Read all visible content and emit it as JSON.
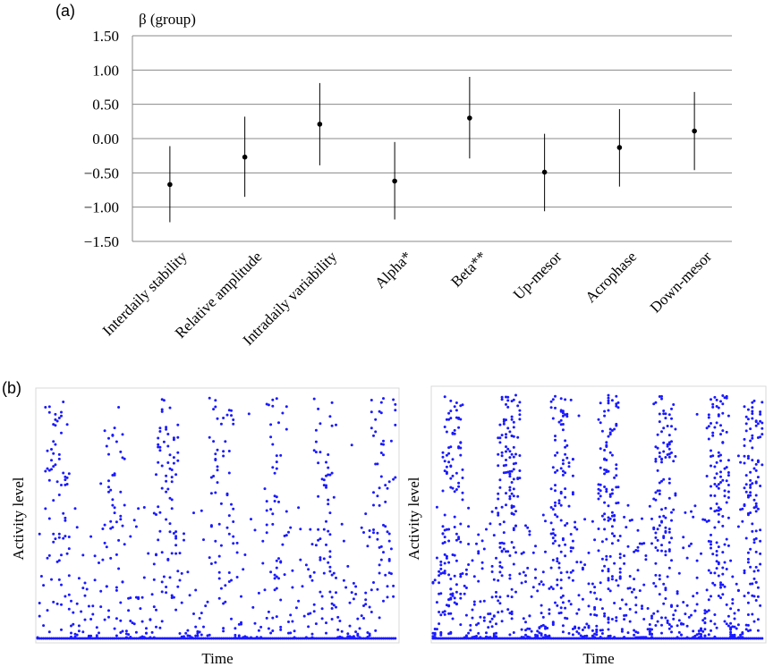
{
  "panels": {
    "a_label": "(a)",
    "b_label": "(b)"
  },
  "chart_data": [
    {
      "type": "scatter",
      "subtype": "point-with-error-bars",
      "ylabel": "β (group)",
      "ylim": [
        -1.5,
        1.5
      ],
      "yticks": [
        -1.5,
        -1.0,
        -0.5,
        0.0,
        0.5,
        1.0,
        1.5
      ],
      "ytick_labels": [
        "−1.50",
        "−1.00",
        "−0.50",
        "0.00",
        "0.50",
        "1.00",
        "1.50"
      ],
      "grid": true,
      "categories": [
        "Interdaily stability",
        "Relative amplitude",
        "Intradaily variability",
        "Alpha*",
        "Beta**",
        "Up-mesor",
        "Acrophase",
        "Down-mesor"
      ],
      "values": [
        -0.67,
        -0.27,
        0.21,
        -0.62,
        0.3,
        -0.49,
        -0.13,
        0.11
      ],
      "lower": [
        -1.22,
        -0.85,
        -0.39,
        -1.18,
        -0.29,
        -1.06,
        -0.7,
        -0.46
      ],
      "upper": [
        -0.11,
        0.32,
        0.81,
        -0.05,
        0.9,
        0.07,
        0.43,
        0.68
      ]
    },
    {
      "type": "scatter",
      "subtype": "actogram",
      "xlabel": "Time",
      "ylabel": "Activity level",
      "color": "#1a1aff",
      "days": 7,
      "bursts": [
        0.055,
        0.21,
        0.36,
        0.51,
        0.66,
        0.8,
        0.96
      ],
      "intensity": 0.45
    },
    {
      "type": "scatter",
      "subtype": "actogram",
      "xlabel": "Time",
      "ylabel": "Activity level",
      "color": "#1a1aff",
      "days": 7,
      "bursts": [
        0.06,
        0.23,
        0.39,
        0.53,
        0.7,
        0.86,
        0.97
      ],
      "intensity": 1.0
    }
  ]
}
